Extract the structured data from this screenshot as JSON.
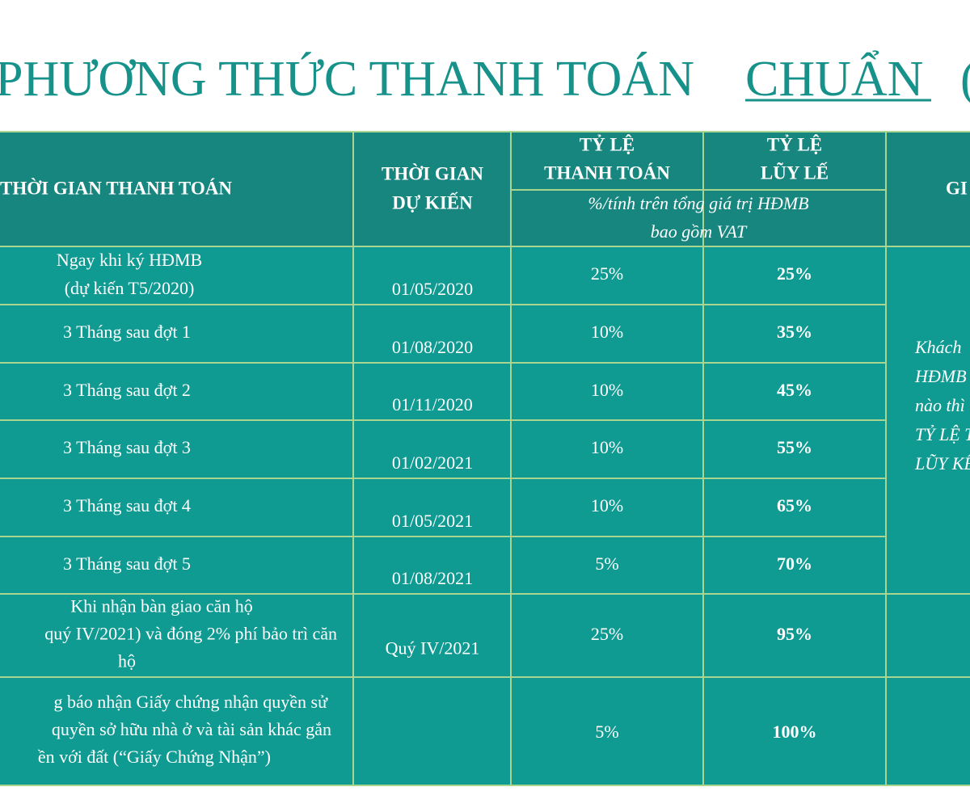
{
  "header": {
    "title": "PHƯƠNG THỨC THANH TOÁN",
    "title_emphasis": "CHUẨN",
    "title_tail": "("
  },
  "table": {
    "columns": [
      "THỜI GIAN THANH TOÁN",
      [
        "THỜI GIAN",
        "DỰ KIẾN"
      ],
      [
        "TỶ LỆ",
        "THANH TOÁN"
      ],
      [
        "TỶ LỆ",
        "LŨY LẾ"
      ],
      "GI"
    ],
    "subheader": [
      "%/tính trên tổng giá trị HĐMB",
      "bao gồm VAT"
    ],
    "rows": [
      [
        [
          "Ngay khi ký HĐMB",
          "(dự kiến T5/2020)"
        ],
        "01/05/2020",
        "25%",
        "25%"
      ],
      [
        [
          "3 Tháng sau đợt 1"
        ],
        "01/08/2020",
        "10%",
        "35%"
      ],
      [
        [
          "3 Tháng sau đợt 2"
        ],
        "01/11/2020",
        "10%",
        "45%"
      ],
      [
        [
          "3 Tháng sau đợt 3"
        ],
        "01/02/2021",
        "10%",
        "55%"
      ],
      [
        [
          "3 Tháng sau đợt 4"
        ],
        "01/05/2021",
        "10%",
        "65%"
      ],
      [
        [
          "3 Tháng sau đợt 5"
        ],
        "01/08/2021",
        "5%",
        "70%"
      ],
      [
        [
          "Khi nhận bàn giao căn hộ",
          "quý IV/2021) và đóng 2% phí bảo trì căn",
          "hộ"
        ],
        "Quý IV/2021",
        "25%",
        "95%"
      ],
      [
        [
          "g báo nhận Giấy chứng nhận quyền sử",
          "quyền sở hữu nhà ở và tài sản khác gắn",
          "ền với đất (“Giấy Chứng Nhận”)"
        ],
        "",
        "5%",
        "100%"
      ]
    ],
    "note": [
      "Khách",
      "HĐMB",
      "nào thì th",
      "TỶ LỆ T",
      "LŨY KẾ"
    ]
  }
}
